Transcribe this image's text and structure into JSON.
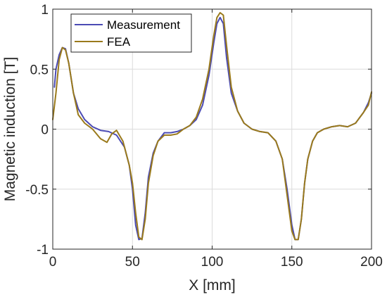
{
  "chart_data": {
    "type": "line",
    "title": "",
    "xlabel": "X [mm]",
    "ylabel": "Magnetic induction [T]",
    "xlim": [
      0,
      200
    ],
    "ylim": [
      -1,
      1
    ],
    "xticks": [
      0,
      50,
      100,
      150,
      200
    ],
    "xtick_labels": [
      "0",
      "50",
      "100",
      "150",
      "200"
    ],
    "yticks": [
      -1,
      -0.5,
      0,
      0.5,
      1
    ],
    "ytick_labels": [
      "-1",
      "-0.5",
      "0",
      "0.5",
      "1"
    ],
    "grid": true,
    "legend_position": "top-left",
    "series": [
      {
        "name": "Measurement",
        "color": "#4B4BB4",
        "x": [
          1,
          2,
          4,
          6,
          8,
          10,
          13,
          16,
          20,
          25,
          30,
          35,
          40,
          45,
          48,
          50,
          52,
          54,
          56,
          58,
          60,
          63,
          66,
          70,
          74,
          78,
          82,
          86,
          90,
          94,
          98,
          101,
          103,
          105,
          107,
          109,
          112,
          116,
          120,
          125,
          130,
          135,
          140,
          144,
          147,
          150,
          152,
          154,
          156,
          158,
          160,
          163,
          166,
          170,
          175,
          180,
          185,
          190,
          195,
          198,
          200
        ],
        "y": [
          0.35,
          0.5,
          0.62,
          0.68,
          0.67,
          0.55,
          0.3,
          0.17,
          0.08,
          0.02,
          -0.01,
          -0.02,
          -0.05,
          -0.15,
          -0.3,
          -0.5,
          -0.8,
          -0.92,
          -0.91,
          -0.7,
          -0.4,
          -0.2,
          -0.1,
          -0.03,
          -0.03,
          -0.02,
          0.0,
          0.03,
          0.08,
          0.2,
          0.45,
          0.72,
          0.88,
          0.93,
          0.88,
          0.6,
          0.3,
          0.15,
          0.05,
          0.0,
          -0.02,
          -0.03,
          -0.1,
          -0.25,
          -0.5,
          -0.8,
          -0.92,
          -0.92,
          -0.75,
          -0.45,
          -0.25,
          -0.1,
          -0.03,
          0.0,
          0.02,
          0.03,
          0.02,
          0.05,
          0.14,
          0.22,
          0.3
        ]
      },
      {
        "name": "FEA",
        "color": "#9A7A1C",
        "x": [
          0,
          2,
          4,
          6,
          8,
          10,
          13,
          16,
          20,
          25,
          30,
          34,
          37,
          40,
          44,
          48,
          50,
          52,
          54,
          56,
          58,
          60,
          63,
          66,
          70,
          74,
          78,
          82,
          86,
          90,
          94,
          98,
          101,
          103,
          105,
          107,
          109,
          112,
          116,
          120,
          125,
          130,
          135,
          140,
          144,
          147,
          150,
          152,
          154,
          156,
          158,
          160,
          163,
          166,
          170,
          175,
          180,
          185,
          190,
          195,
          198,
          200
        ],
        "y": [
          0.08,
          0.3,
          0.58,
          0.68,
          0.66,
          0.55,
          0.3,
          0.12,
          0.05,
          0.0,
          -0.08,
          -0.11,
          -0.04,
          -0.01,
          -0.1,
          -0.3,
          -0.45,
          -0.7,
          -0.9,
          -0.92,
          -0.75,
          -0.45,
          -0.22,
          -0.1,
          -0.05,
          -0.05,
          -0.04,
          0.0,
          0.03,
          0.1,
          0.25,
          0.5,
          0.78,
          0.93,
          0.97,
          0.95,
          0.7,
          0.35,
          0.15,
          0.05,
          0.0,
          -0.02,
          -0.03,
          -0.1,
          -0.25,
          -0.55,
          -0.85,
          -0.92,
          -0.92,
          -0.75,
          -0.45,
          -0.25,
          -0.1,
          -0.03,
          0.0,
          0.02,
          0.03,
          0.02,
          0.05,
          0.14,
          0.2,
          0.31
        ]
      }
    ]
  }
}
